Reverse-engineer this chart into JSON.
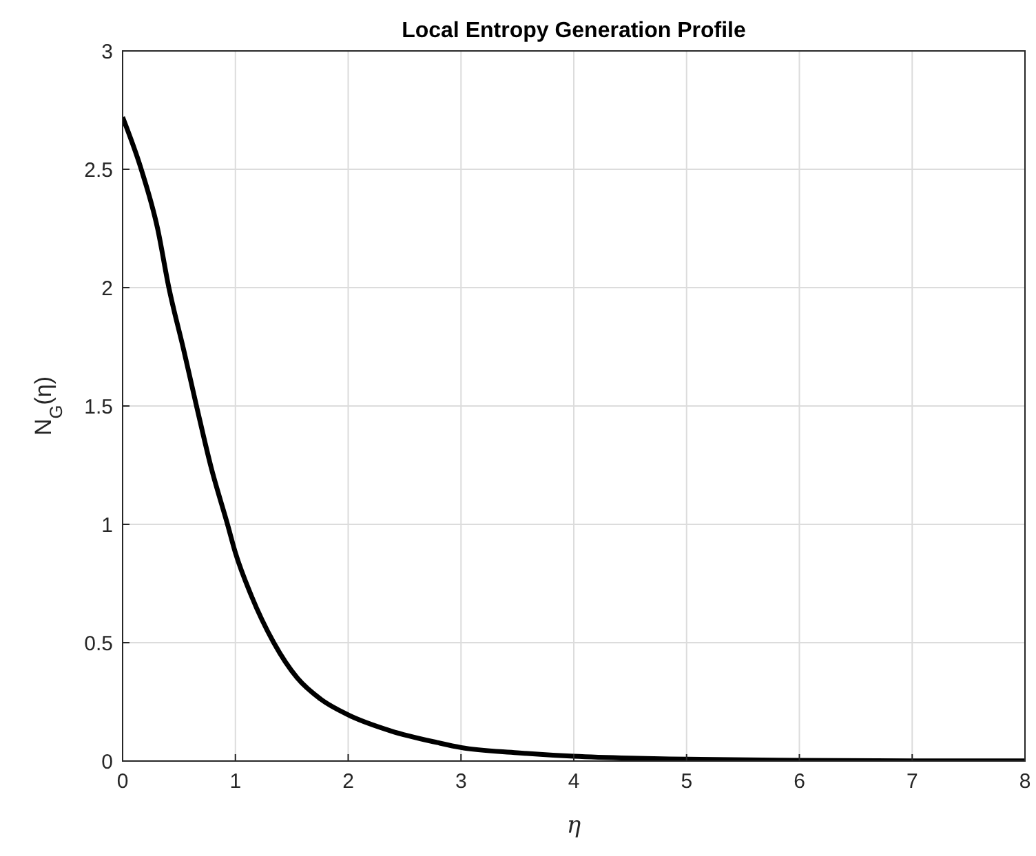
{
  "chart_data": {
    "type": "line",
    "title": "Local Entropy Generation Profile",
    "xlabel": "η",
    "ylabel": "N$_{G}$(η)",
    "series": [
      {
        "color": "#000000",
        "x": [
          0,
          0.165,
          0.31,
          0.41,
          0.54,
          0.66,
          0.785,
          0.93,
          1.0,
          1.14,
          1.34,
          1.55,
          1.76,
          2.0,
          2.38,
          2.79,
          3.0,
          3.5,
          4.0,
          4.5,
          5.0,
          6.0,
          7.0,
          8.0
        ],
        "values": [
          2.72,
          2.5,
          2.25,
          2.0,
          1.74,
          1.49,
          1.24,
          1.0,
          0.88,
          0.7,
          0.5,
          0.35,
          0.26,
          0.195,
          0.127,
          0.078,
          0.057,
          0.035,
          0.02,
          0.012,
          0.008,
          0.003,
          0.001,
          0.001
        ]
      }
    ],
    "xlim": [
      0,
      8
    ],
    "xticks": [
      0,
      1,
      2,
      3,
      4,
      5,
      6,
      7,
      8
    ],
    "ylim": [
      0,
      3
    ],
    "yticks": [
      0,
      0.5,
      1,
      1.5,
      2,
      2.5,
      3
    ],
    "grid": true,
    "marker": "none",
    "line_style": "solid"
  }
}
